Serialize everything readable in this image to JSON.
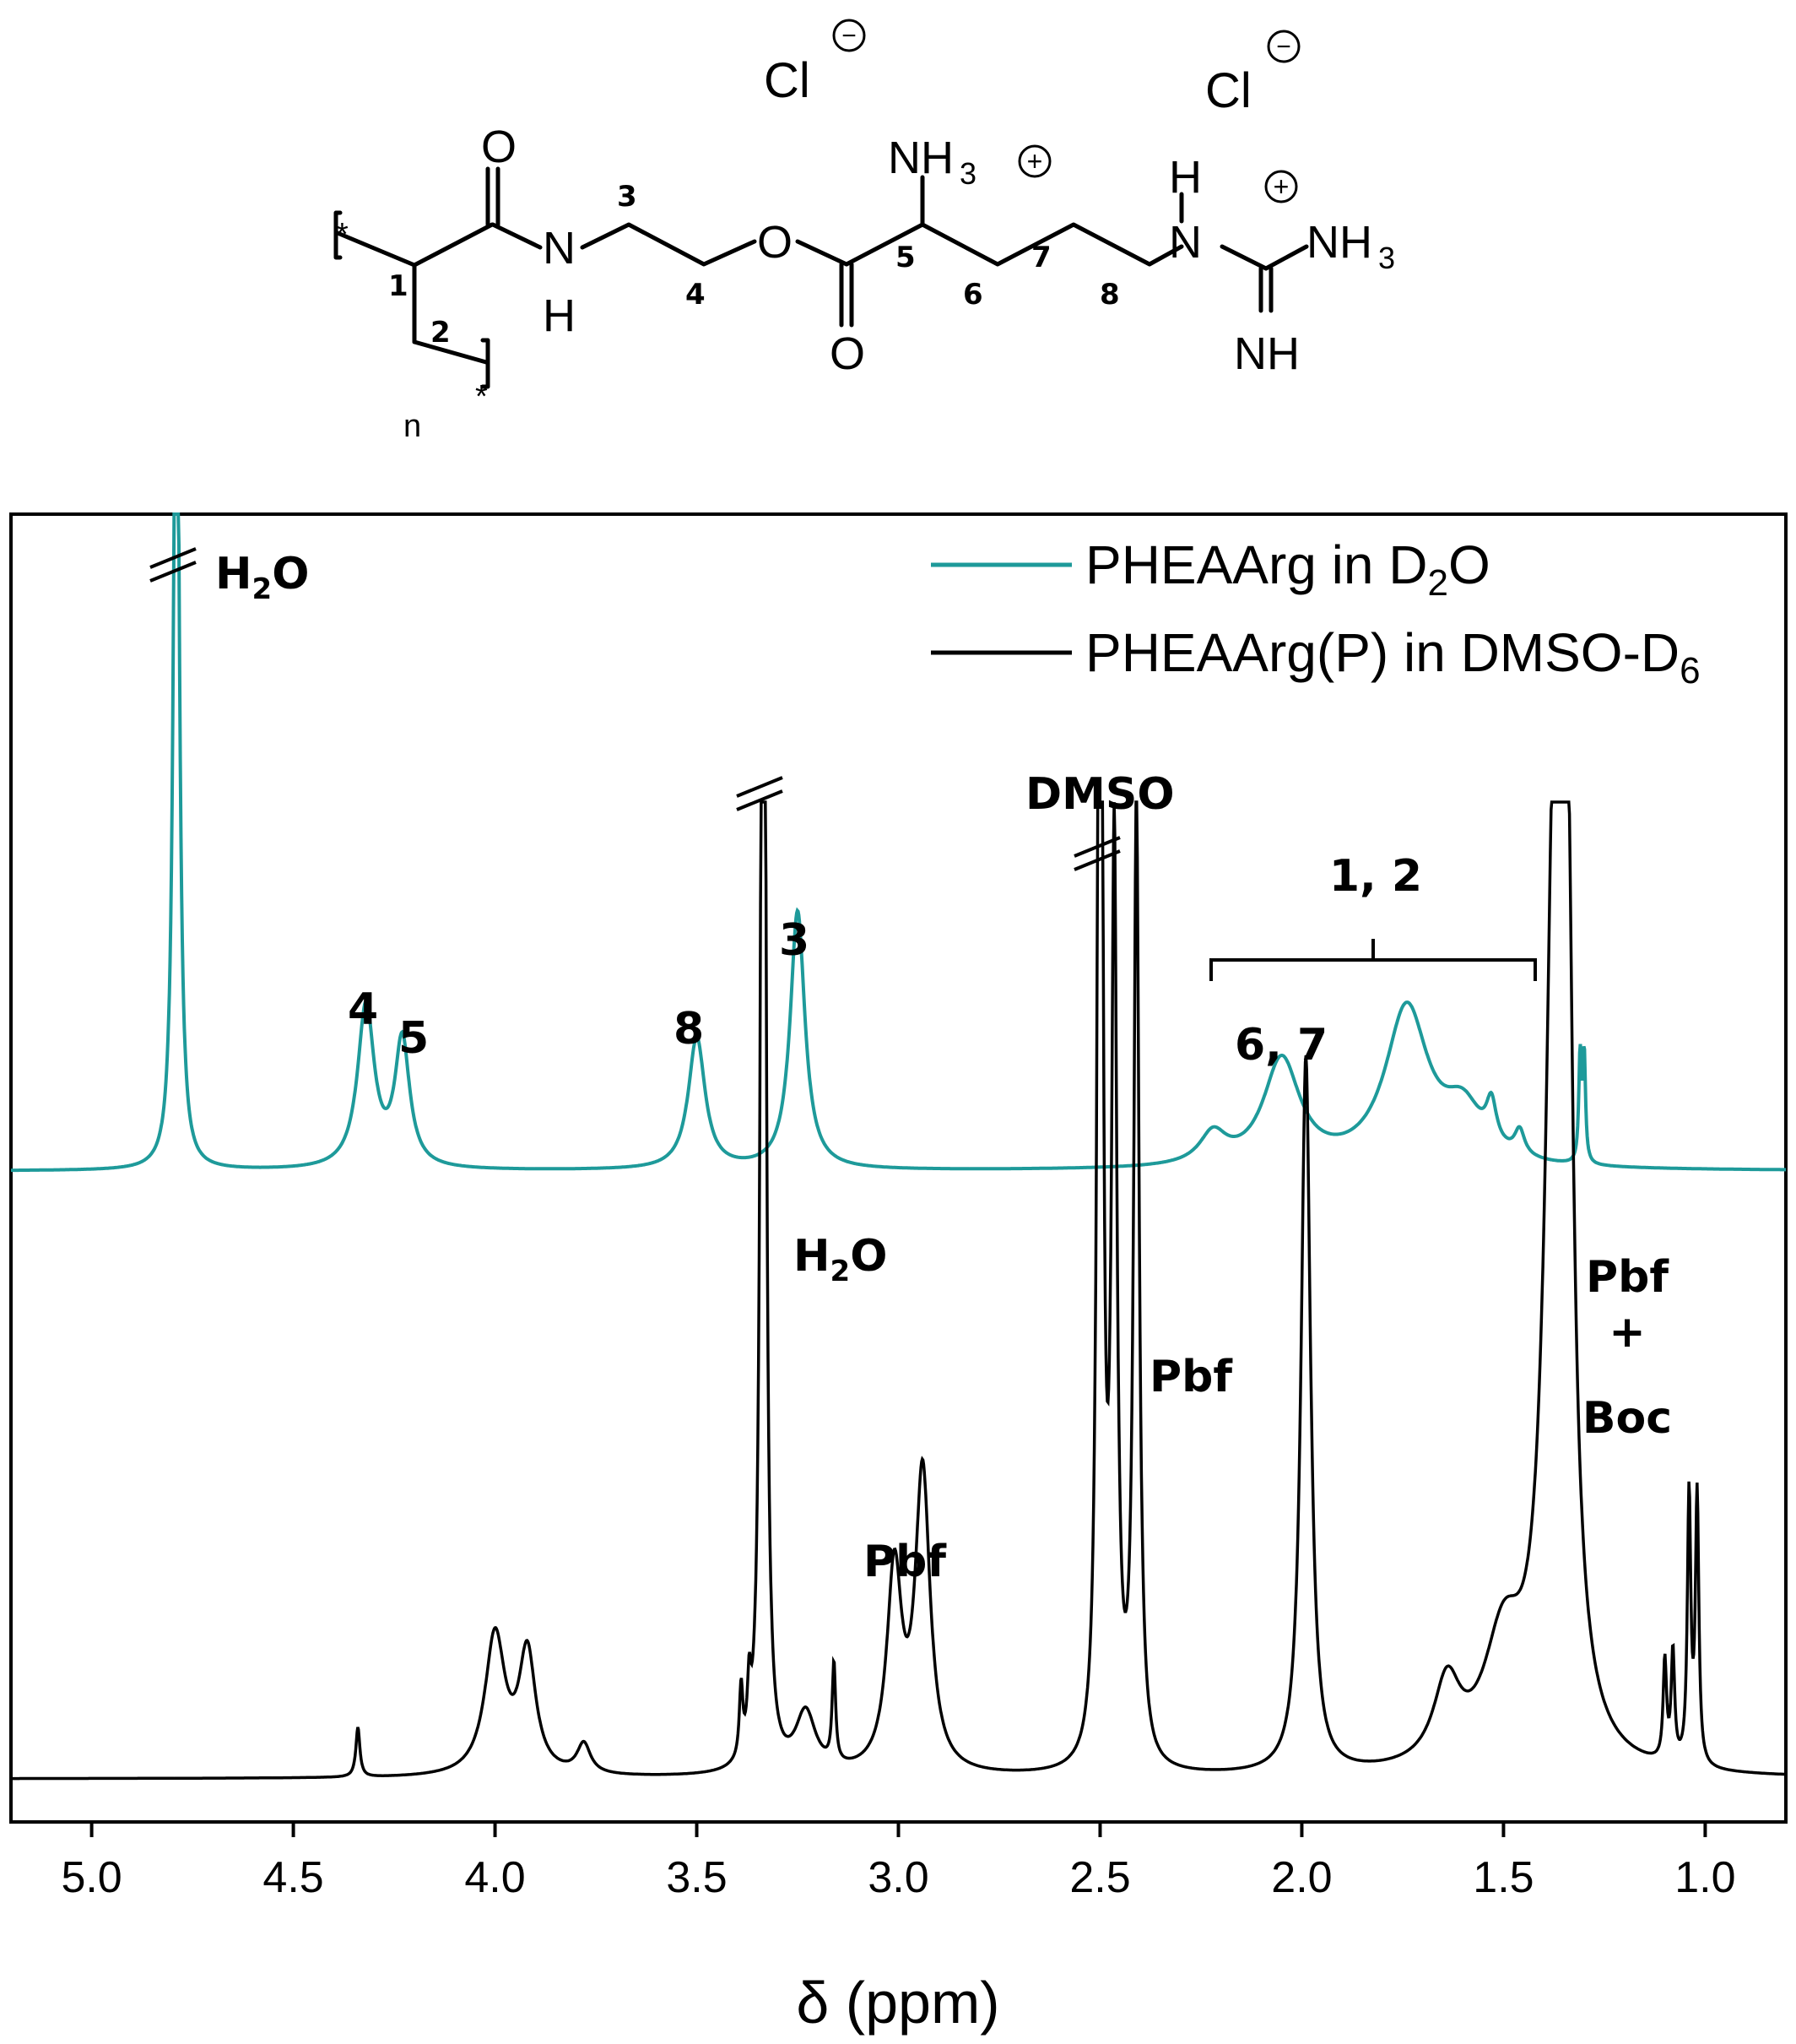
{
  "structure": {
    "counterion_1": "Cl",
    "counterion_2": "Cl",
    "negative_charge": "−",
    "positive_charge": "+",
    "carbonyl_o_left": "O",
    "amide_n": "N",
    "amide_h": "H",
    "ester_o": "O",
    "ester_carbonyl_o": "O",
    "amine_group": "NH",
    "amine_subscript": "3",
    "guanidine_h": "H",
    "guanidine_n": "N",
    "guanidine_nh3": "NH",
    "guanidine_nh3_subscript": "3",
    "imine_nh": "NH",
    "repeat_n": "n",
    "end_star_top": "*",
    "end_star_bottom": "*",
    "carbon_labels": [
      "1",
      "2",
      "3",
      "4",
      "5",
      "6",
      "7",
      "8"
    ]
  },
  "chart_data": {
    "type": "line",
    "xlabel": "δ (ppm)",
    "xlim": [
      5.2,
      0.8
    ],
    "x_reversed": true,
    "x_ticks": [
      "5.0",
      "4.5",
      "4.0",
      "3.5",
      "3.0",
      "2.5",
      "2.0",
      "1.5",
      "1.0"
    ],
    "y_axis_labels": false,
    "legend_placement": "top-right",
    "series": [
      {
        "name": "PHEAArg in D2O",
        "legend_label": "PHEAArg in D",
        "legend_subscript": "2",
        "legend_suffix": "O",
        "color": "#1e9a9a",
        "offset": 0.0,
        "baseline": 0,
        "peaks": [
          {
            "ppm": 4.79,
            "height": 2.0,
            "width": 0.008,
            "truncated": true
          },
          {
            "ppm": 4.32,
            "height": 0.32,
            "width": 0.025
          },
          {
            "ppm": 4.23,
            "height": 0.25,
            "width": 0.022
          },
          {
            "ppm": 3.5,
            "height": 0.26,
            "width": 0.025
          },
          {
            "ppm": 3.25,
            "height": 0.51,
            "width": 0.022
          },
          {
            "ppm": 2.22,
            "height": 0.06,
            "width": 0.04
          },
          {
            "ppm": 2.05,
            "height": 0.21,
            "width": 0.055
          },
          {
            "ppm": 1.74,
            "height": 0.31,
            "width": 0.065
          },
          {
            "ppm": 1.6,
            "height": 0.1,
            "width": 0.06
          },
          {
            "ppm": 1.53,
            "height": 0.08,
            "width": 0.015
          },
          {
            "ppm": 1.46,
            "height": 0.05,
            "width": 0.015
          },
          {
            "ppm": 1.31,
            "height": 0.21,
            "width": 0.004
          },
          {
            "ppm": 1.3,
            "height": 0.21,
            "width": 0.004
          }
        ]
      },
      {
        "name": "PHEAArg(P) in DMSO-D6",
        "legend_label": "PHEAArg(P) in DMSO-D",
        "legend_subscript": "6",
        "legend_suffix": "",
        "color": "#000000",
        "offset": -1.0,
        "baseline": 0,
        "peaks": [
          {
            "ppm": 4.34,
            "height": 0.05,
            "width": 0.006
          },
          {
            "ppm": 4.0,
            "height": 0.14,
            "width": 0.03
          },
          {
            "ppm": 3.92,
            "height": 0.12,
            "width": 0.025
          },
          {
            "ppm": 3.78,
            "height": 0.03,
            "width": 0.02
          },
          {
            "ppm": 3.39,
            "height": 0.07,
            "width": 0.005
          },
          {
            "ppm": 3.37,
            "height": 0.06,
            "width": 0.005
          },
          {
            "ppm": 3.335,
            "height": 2.0,
            "width": 0.006,
            "truncated": true
          },
          {
            "ppm": 3.23,
            "height": 0.06,
            "width": 0.03
          },
          {
            "ppm": 3.16,
            "height": 0.1,
            "width": 0.005
          },
          {
            "ppm": 3.01,
            "height": 0.2,
            "width": 0.022
          },
          {
            "ppm": 2.94,
            "height": 0.3,
            "width": 0.022
          },
          {
            "ppm": 2.5,
            "height": 2.0,
            "width": 0.006,
            "truncated": true
          },
          {
            "ppm": 2.465,
            "height": 0.9,
            "width": 0.008
          },
          {
            "ppm": 2.41,
            "height": 0.97,
            "width": 0.008
          },
          {
            "ppm": 1.99,
            "height": 0.72,
            "width": 0.014
          },
          {
            "ppm": 1.64,
            "height": 0.08,
            "width": 0.04
          },
          {
            "ppm": 1.5,
            "height": 0.12,
            "width": 0.06
          },
          {
            "ppm": 1.37,
            "height": 1.05,
            "width": 0.028
          },
          {
            "ppm": 1.34,
            "height": 0.55,
            "width": 0.015
          },
          {
            "ppm": 1.1,
            "height": 0.1,
            "width": 0.005
          },
          {
            "ppm": 1.08,
            "height": 0.11,
            "width": 0.005
          },
          {
            "ppm": 1.04,
            "height": 0.27,
            "width": 0.005
          },
          {
            "ppm": 1.02,
            "height": 0.27,
            "width": 0.005
          }
        ]
      }
    ],
    "annotations": {
      "h2o_top": "O",
      "h2o_top_prefix": "H",
      "h2o_top_sub": "2",
      "h2o_mid_prefix": "H",
      "h2o_mid_sub": "2",
      "h2o_mid_suffix": "O",
      "dmso": "DMSO",
      "bracket_label": "1, 2",
      "peak_4": "4",
      "peak_5": "5",
      "peak_8": "8",
      "peak_3": "3",
      "peak_67": "6, 7",
      "pbf_1": "Pbf",
      "pbf_2": "Pbf",
      "pbf_boc_1": "Pbf",
      "pbf_boc_2": "+",
      "pbf_boc_3": "Boc"
    }
  }
}
